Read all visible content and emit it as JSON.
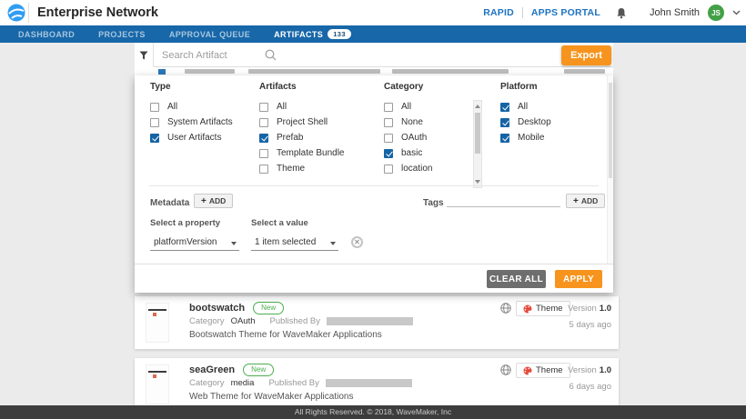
{
  "header": {
    "app_title": "Enterprise Network",
    "rapid_label": "RAPID",
    "apps_portal_label": "APPS PORTAL",
    "user_name": "John Smith",
    "user_initials": "JS"
  },
  "nav": {
    "items": [
      {
        "label": "DASHBOARD",
        "active": false
      },
      {
        "label": "PROJECTS",
        "active": false
      },
      {
        "label": "APPROVAL QUEUE",
        "active": false
      },
      {
        "label": "ARTIFACTS",
        "active": true,
        "badge": "133"
      }
    ]
  },
  "toolbar": {
    "search_placeholder": "Search Artifact",
    "export_label": "Export"
  },
  "filter_panel": {
    "groups": [
      {
        "title": "Type",
        "options": [
          {
            "label": "All",
            "checked": false
          },
          {
            "label": "System Artifacts",
            "checked": false
          },
          {
            "label": "User Artifacts",
            "checked": true
          }
        ]
      },
      {
        "title": "Artifacts",
        "options": [
          {
            "label": "All",
            "checked": false
          },
          {
            "label": "Project Shell",
            "checked": false
          },
          {
            "label": "Prefab",
            "checked": true
          },
          {
            "label": "Template Bundle",
            "checked": false
          },
          {
            "label": "Theme",
            "checked": false
          }
        ]
      },
      {
        "title": "Category",
        "scrollbar": true,
        "options": [
          {
            "label": "All",
            "checked": false
          },
          {
            "label": "None",
            "checked": false
          },
          {
            "label": "OAuth",
            "checked": false
          },
          {
            "label": "basic",
            "checked": true
          },
          {
            "label": "location",
            "checked": false
          }
        ]
      },
      {
        "title": "Platform",
        "options": [
          {
            "label": "All",
            "checked": true
          },
          {
            "label": "Desktop",
            "checked": true
          },
          {
            "label": "Mobile",
            "checked": true
          }
        ]
      }
    ],
    "metadata": {
      "label": "Metadata",
      "add_label": "ADD",
      "property_label": "Select a property",
      "value_label": "Select a value",
      "property_value": "platformVersion",
      "value_value": "1 item selected"
    },
    "tags": {
      "label": "Tags",
      "add_label": "ADD"
    },
    "actions": {
      "clear_label": "CLEAR ALL",
      "apply_label": "APPLY"
    }
  },
  "cards": [
    {
      "title": "bootswatch",
      "status_badge": "New",
      "category_label": "Category",
      "category_value": "OAuth",
      "published_by_label": "Published By",
      "description": "Bootswatch Theme for WaveMaker Applications",
      "type_badge": "Theme",
      "version_label": "Version",
      "version_value": "1.0",
      "published_age": "5 days ago"
    },
    {
      "title": "seaGreen",
      "status_badge": "New",
      "category_label": "Category",
      "category_value": "media",
      "published_by_label": "Published By",
      "description": "Web Theme for WaveMaker Applications",
      "type_badge": "Theme",
      "version_label": "Version",
      "version_value": "1.0",
      "published_age": "6 days ago"
    }
  ],
  "footer": {
    "copyright": "All Rights Reserved. © 2018, WaveMaker, Inc"
  },
  "colors": {
    "nav_blue": "#1767a9",
    "accent_orange": "#f7941e",
    "checkbox_blue": "#1564a5",
    "badge_green": "#4caf50",
    "theme_icon_red": "#e5493a",
    "avatar_green": "#43a047",
    "footer_dark": "#3d3d3d"
  }
}
